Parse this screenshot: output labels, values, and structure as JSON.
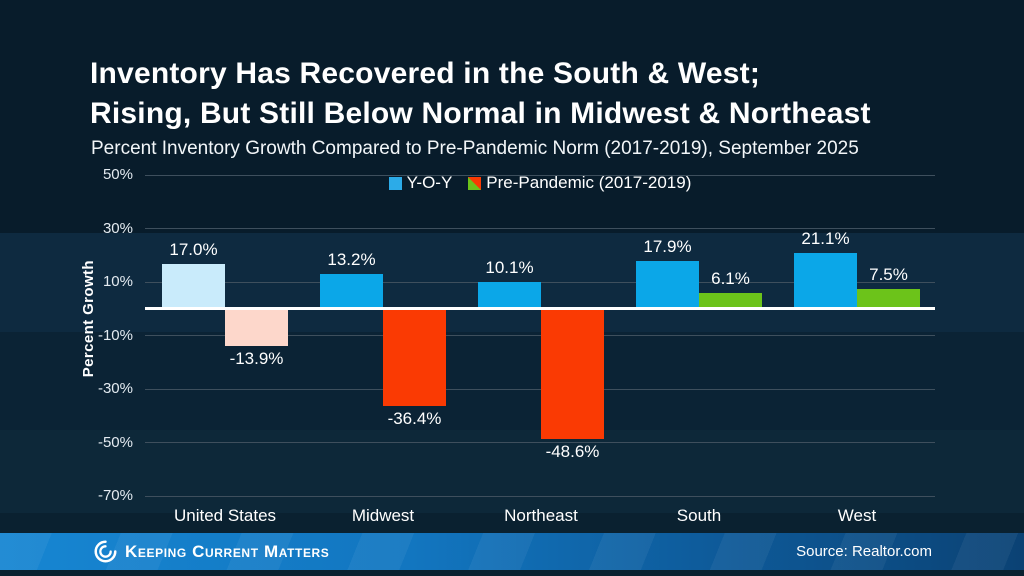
{
  "header": {
    "title": "Inventory Has Recovered in the South & West;\nRising, But Still Below Normal in Midwest & Northeast",
    "subtitle": "Percent Inventory Growth Compared to Pre-Pandemic Norm (2017-2019), September 2025"
  },
  "chart_data": {
    "type": "bar",
    "title": "Inventory Has Recovered in the South & West; Rising, But Still Below Normal in Midwest & Northeast",
    "subtitle": "Percent Inventory Growth Compared to Pre-Pandemic Norm (2017-2019), September 2025",
    "xlabel": "",
    "ylabel": "Percent Growth",
    "categories": [
      "United States",
      "Midwest",
      "Northeast",
      "South",
      "West"
    ],
    "series": [
      {
        "name": "Y-O-Y",
        "values": [
          17.0,
          13.2,
          10.1,
          17.9,
          21.1
        ],
        "labels": [
          "17.0%",
          "13.2%",
          "10.1%",
          "17.9%",
          "21.1%"
        ],
        "colors": [
          "#c9ebfb",
          "#0ba7e8",
          "#0ba7e8",
          "#0ba7e8",
          "#0ba7e8"
        ]
      },
      {
        "name": "Pre-Pandemic (2017-2019)",
        "values": [
          -13.9,
          -36.4,
          -48.6,
          6.1,
          7.5
        ],
        "labels": [
          "-13.9%",
          "-36.4%",
          "-48.6%",
          "6.1%",
          "7.5%"
        ],
        "colors": [
          "#fdd7cb",
          "#fa3a03",
          "#fa3a03",
          "#6cc31a",
          "#6cc31a"
        ]
      }
    ],
    "legend": {
      "position": "top-center",
      "items": [
        {
          "label": "Y-O-Y",
          "colors": [
            "#2cabe8"
          ]
        },
        {
          "label": "Pre-Pandemic (2017-2019)",
          "colors": [
            "#6cc31a",
            "#fa3a03"
          ]
        }
      ]
    },
    "y_axis": {
      "ticks": [
        {
          "value": 50,
          "label": "50%"
        },
        {
          "value": 30,
          "label": "30%"
        },
        {
          "value": 10,
          "label": "10%"
        },
        {
          "value": -10,
          "label": "-10%"
        },
        {
          "value": -30,
          "label": "-30%"
        },
        {
          "value": -50,
          "label": "-50%"
        },
        {
          "value": -70,
          "label": "-70%"
        }
      ],
      "range": [
        -78,
        57
      ],
      "grid": true,
      "zero_line": true
    },
    "colors": {
      "yoy_blue": "#0ba7e8",
      "yoy_national_light_blue": "#c9ebfb",
      "prepandemic_negative_red": "#fa3a03",
      "prepandemic_national_pink": "#fdd7cb",
      "prepandemic_positive_green": "#6cc31a",
      "background_navy": "#0b2335",
      "gridline": "#3e4f5d",
      "zero_line": "#ffffff"
    }
  },
  "footer": {
    "brand": "Keeping Current Matters",
    "source": "Source: Realtor.com",
    "bar_color_left": "#1786d2",
    "bar_color_right": "#0b4274"
  }
}
